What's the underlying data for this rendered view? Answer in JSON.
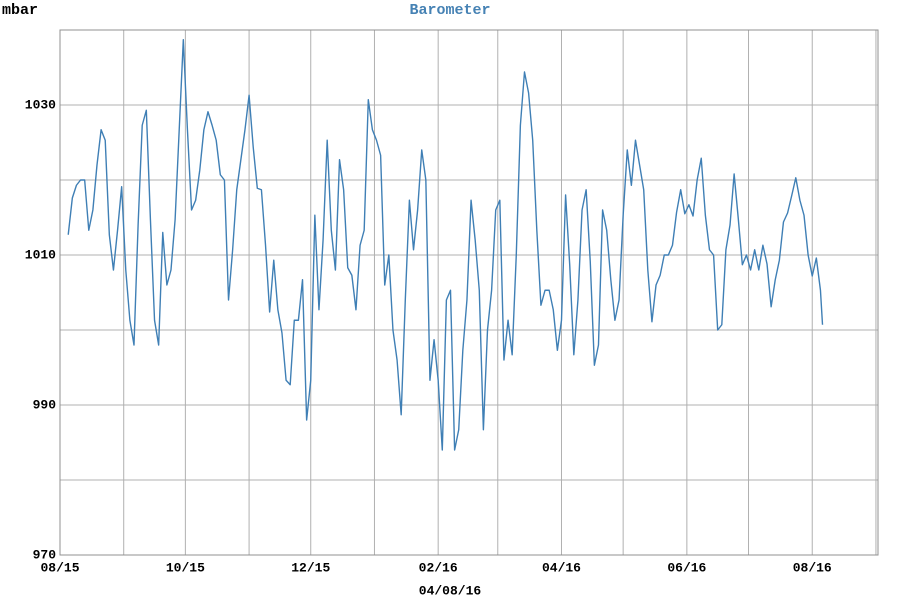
{
  "chart_data": {
    "type": "line",
    "title": "Barometer",
    "y_label": "mbar",
    "x_label": "04/08/16",
    "color": "#3f7fb5",
    "grid": true,
    "xlim": [
      0,
      398
    ],
    "xticks": [
      {
        "value": 0,
        "label": "08/15"
      },
      {
        "value": 61,
        "label": "10/15"
      },
      {
        "value": 122,
        "label": "12/15"
      },
      {
        "value": 184,
        "label": "02/16"
      },
      {
        "value": 244,
        "label": "04/16"
      },
      {
        "value": 305,
        "label": "06/16"
      },
      {
        "value": 366,
        "label": "08/16"
      }
    ],
    "xminor_ticks": [
      31,
      92,
      153,
      213,
      274,
      335,
      397
    ],
    "ylim": [
      970,
      1040
    ],
    "yticks": [
      970,
      990,
      1010,
      1030
    ],
    "yminor_ticks": [
      980,
      1000,
      1020,
      1040
    ],
    "x": [
      4,
      6,
      8,
      10,
      12,
      14,
      16,
      18,
      20,
      22,
      24,
      26,
      28,
      30,
      32,
      34,
      36,
      38,
      40,
      42,
      44,
      46,
      48,
      50,
      52,
      54,
      56,
      58,
      60,
      62,
      64,
      66,
      68,
      70,
      72,
      74,
      76,
      78,
      80,
      82,
      84,
      86,
      88,
      90,
      92,
      94,
      96,
      98,
      100,
      102,
      104,
      106,
      108,
      110,
      112,
      114,
      116,
      118,
      120,
      122,
      124,
      126,
      128,
      130,
      132,
      134,
      136,
      138,
      140,
      142,
      144,
      146,
      148,
      150,
      152,
      154,
      156,
      158,
      160,
      162,
      164,
      166,
      168,
      170,
      172,
      174,
      176,
      178,
      180,
      182,
      184,
      186,
      188,
      190,
      192,
      194,
      196,
      198,
      200,
      202,
      204,
      206,
      208,
      210,
      212,
      214,
      216,
      218,
      220,
      222,
      224,
      226,
      228,
      230,
      232,
      234,
      236,
      238,
      240,
      242,
      244,
      246,
      248,
      250,
      252,
      254,
      256,
      258,
      260,
      262,
      264,
      266,
      268,
      270,
      272,
      274,
      276,
      278,
      280,
      282,
      284,
      286,
      288,
      290,
      292,
      294,
      296,
      298,
      300,
      302,
      304,
      306,
      308,
      310,
      312,
      314,
      316,
      318,
      320,
      322,
      324,
      326,
      328,
      330,
      332,
      334,
      336,
      338,
      340,
      342,
      344,
      346,
      348,
      350,
      352,
      354,
      356,
      358,
      360,
      362,
      364,
      366,
      368,
      370,
      371
    ],
    "values": [
      1012.7,
      1017.6,
      1019.3,
      1020,
      1020,
      1013.3,
      1016,
      1022,
      1026.7,
      1025.3,
      1012.7,
      1008,
      1013.3,
      1019.1,
      1008,
      1001.3,
      998,
      1014,
      1027.3,
      1029.3,
      1014.7,
      1001.3,
      998,
      1013,
      1006,
      1008,
      1014.7,
      1026.7,
      1038.7,
      1026.7,
      1016,
      1017.3,
      1021.3,
      1026.7,
      1029.1,
      1027.3,
      1025.3,
      1020.7,
      1020,
      1004,
      1010.7,
      1018.7,
      1022.7,
      1026.7,
      1031.3,
      1024.4,
      1018.9,
      1018.7,
      1011.3,
      1002.4,
      1009.3,
      1002.7,
      999.6,
      993.3,
      992.7,
      1001.3,
      1001.3,
      1006.7,
      988,
      993.3,
      1015.3,
      1002.7,
      1012,
      1025.3,
      1013.3,
      1008,
      1022.7,
      1018.7,
      1008.3,
      1007.3,
      1002.7,
      1011.3,
      1013.3,
      1030.7,
      1026.7,
      1025.3,
      1023.3,
      1006,
      1010,
      1000,
      996,
      988.7,
      1004,
      1017.3,
      1010.7,
      1016,
      1024,
      1020,
      993.3,
      998.7,
      993.3,
      984,
      1004,
      1005.3,
      984,
      986.7,
      997.3,
      1004,
      1017.3,
      1012,
      1005.3,
      986.7,
      1000,
      1005.3,
      1016,
      1017.3,
      996,
      1001.3,
      996.7,
      1010,
      1027.3,
      1034.4,
      1031.6,
      1025.3,
      1013.3,
      1003.3,
      1005.3,
      1005.3,
      1002.7,
      997.3,
      1001.3,
      1018,
      1008.7,
      996.7,
      1004,
      1016,
      1018.7,
      1009.1,
      995.3,
      998,
      1016,
      1013.3,
      1006.7,
      1001.3,
      1004,
      1015.3,
      1024,
      1019.3,
      1025.3,
      1022,
      1018.7,
      1008,
      1001.1,
      1006,
      1007.3,
      1010,
      1010,
      1011.3,
      1015.7,
      1018.7,
      1015.5,
      1016.7,
      1015.2,
      1020,
      1022.9,
      1015.3,
      1010.7,
      1010,
      1000,
      1000.7,
      1010.7,
      1014,
      1020.8,
      1014.9,
      1008.7,
      1010,
      1008,
      1010.7,
      1008,
      1011.3,
      1008.8,
      1003.1,
      1006.7,
      1009.3,
      1014.4,
      1015.6,
      1017.9,
      1020.3,
      1017.3,
      1015.3,
      1010,
      1007.2,
      1009.6,
      1005.3,
      1000.7
    ]
  }
}
